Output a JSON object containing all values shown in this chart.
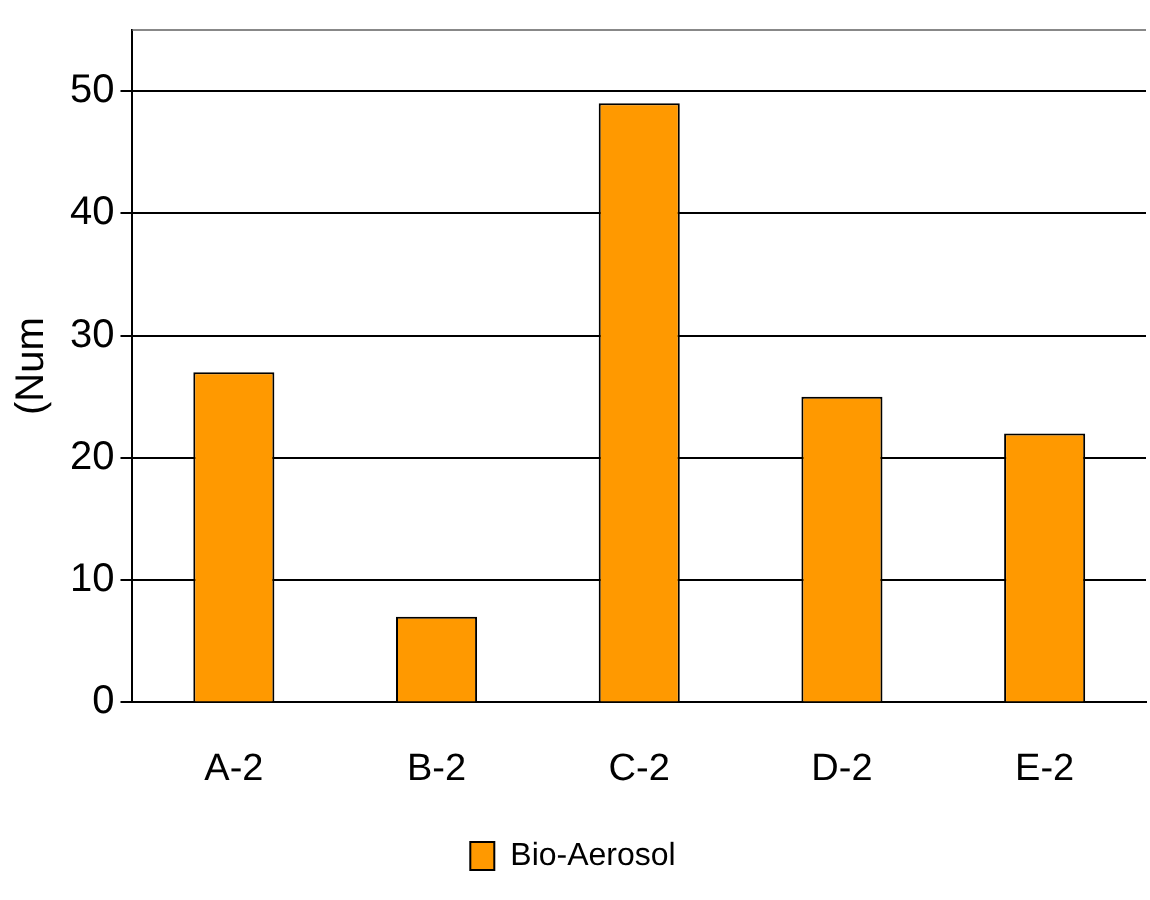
{
  "chart_data": {
    "type": "bar",
    "ylabel": "(Num",
    "categories": [
      "A-2",
      "B-2",
      "C-2",
      "D-2",
      "E-2"
    ],
    "series": [
      {
        "name": "Bio-Aerosol",
        "color": "#ff9900",
        "values": [
          27,
          7,
          49,
          25,
          22
        ]
      }
    ],
    "ylim": [
      0,
      55
    ],
    "yticks": [
      0,
      10,
      20,
      30,
      40,
      50
    ],
    "grid": "y",
    "legend": "bottom"
  }
}
